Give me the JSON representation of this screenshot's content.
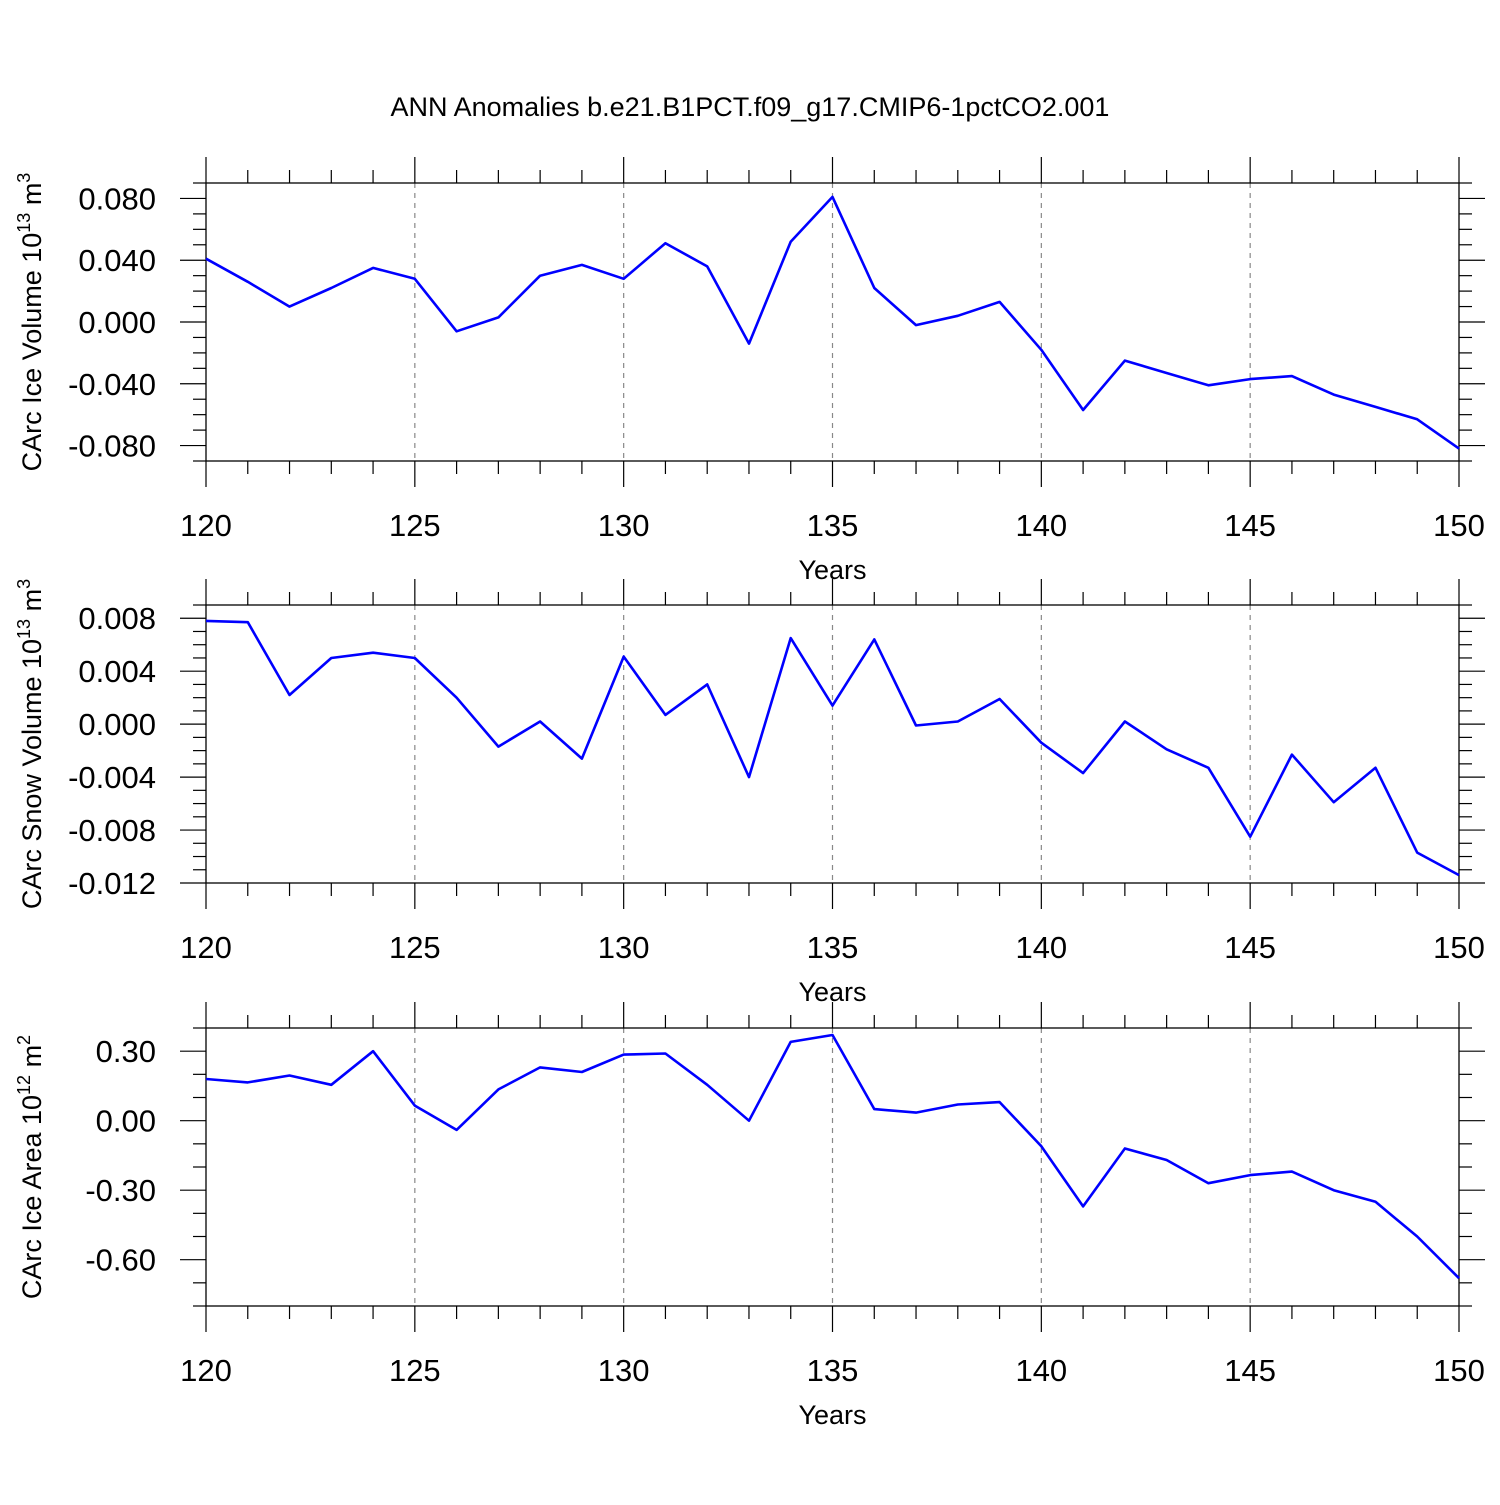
{
  "figure": {
    "title": "ANN Anomalies b.e21.B1PCT.f09_g17.CMIP6-1pctCO2.001",
    "line_color": "#0000ff",
    "grid_color": "#888888"
  },
  "chart_data": [
    {
      "type": "line",
      "title": "",
      "xlabel": "Years",
      "ylabel_main": "CArc Ice Volume 10",
      "ylabel_exp": "13",
      "ylabel_unit": "m",
      "ylabel_unit_exp": "3",
      "xlim": [
        120,
        150
      ],
      "ylim": [
        -0.09,
        0.09
      ],
      "xticks": [
        120,
        125,
        130,
        135,
        140,
        145,
        150
      ],
      "xtick_labels": [
        "120",
        "125",
        "130",
        "135",
        "140",
        "145",
        "150"
      ],
      "yticks": [
        0.08,
        0.04,
        0.0,
        -0.04,
        -0.08
      ],
      "ytick_labels": [
        "0.080",
        "0.040",
        "0.000",
        "-0.040",
        "-0.080"
      ],
      "yminor_step": 0.01,
      "x": [
        120,
        121,
        122,
        123,
        124,
        125,
        126,
        127,
        128,
        129,
        130,
        131,
        132,
        133,
        134,
        135,
        136,
        137,
        138,
        139,
        140,
        141,
        142,
        143,
        144,
        145,
        146,
        147,
        148,
        149,
        150
      ],
      "series": [
        {
          "name": "CArc Ice Volume",
          "values": [
            0.041,
            0.026,
            0.01,
            0.022,
            0.035,
            0.028,
            -0.006,
            0.003,
            0.03,
            0.037,
            0.028,
            0.051,
            0.036,
            -0.014,
            0.052,
            0.081,
            0.022,
            -0.002,
            0.004,
            0.013,
            -0.018,
            -0.057,
            -0.025,
            -0.033,
            -0.041,
            -0.037,
            -0.035,
            -0.047,
            -0.055,
            -0.063,
            -0.082
          ]
        }
      ]
    },
    {
      "type": "line",
      "title": "",
      "xlabel": "Years",
      "ylabel_main": "CArc Snow Volume 10",
      "ylabel_exp": "13",
      "ylabel_unit": "m",
      "ylabel_unit_exp": "3",
      "xlim": [
        120,
        150
      ],
      "ylim": [
        -0.012,
        0.009
      ],
      "xticks": [
        120,
        125,
        130,
        135,
        140,
        145,
        150
      ],
      "xtick_labels": [
        "120",
        "125",
        "130",
        "135",
        "140",
        "145",
        "150"
      ],
      "yticks": [
        0.008,
        0.004,
        0.0,
        -0.004,
        -0.008,
        -0.012
      ],
      "ytick_labels": [
        "0.008",
        "0.004",
        "0.000",
        "-0.004",
        "-0.008",
        "-0.012"
      ],
      "yminor_step": 0.001,
      "x": [
        120,
        121,
        122,
        123,
        124,
        125,
        126,
        127,
        128,
        129,
        130,
        131,
        132,
        133,
        134,
        135,
        136,
        137,
        138,
        139,
        140,
        141,
        142,
        143,
        144,
        145,
        146,
        147,
        148,
        149,
        150
      ],
      "series": [
        {
          "name": "CArc Snow Volume",
          "values": [
            0.0078,
            0.0077,
            0.0022,
            0.005,
            0.0054,
            0.005,
            0.002,
            -0.0017,
            0.0002,
            -0.0026,
            0.0051,
            0.0007,
            0.003,
            -0.004,
            0.0065,
            0.0014,
            0.0064,
            -0.0001,
            0.0002,
            0.0019,
            -0.0014,
            -0.0037,
            0.0002,
            -0.0019,
            -0.0033,
            -0.0085,
            -0.0023,
            -0.0059,
            -0.0033,
            -0.0097,
            -0.0114
          ]
        }
      ]
    },
    {
      "type": "line",
      "title": "",
      "xlabel": "Years",
      "ylabel_main": "CArc Ice Area 10",
      "ylabel_exp": "12",
      "ylabel_unit": "m",
      "ylabel_unit_exp": "2",
      "xlim": [
        120,
        150
      ],
      "ylim": [
        -0.8,
        0.4
      ],
      "xticks": [
        120,
        125,
        130,
        135,
        140,
        145,
        150
      ],
      "xtick_labels": [
        "120",
        "125",
        "130",
        "135",
        "140",
        "145",
        "150"
      ],
      "yticks": [
        0.3,
        0.0,
        -0.3,
        -0.6
      ],
      "ytick_labels": [
        "0.30",
        "0.00",
        "-0.30",
        "-0.60"
      ],
      "yminor_step": 0.1,
      "x": [
        120,
        121,
        122,
        123,
        124,
        125,
        126,
        127,
        128,
        129,
        130,
        131,
        132,
        133,
        134,
        135,
        136,
        137,
        138,
        139,
        140,
        141,
        142,
        143,
        144,
        145,
        146,
        147,
        148,
        149,
        150
      ],
      "series": [
        {
          "name": "CArc Ice Area",
          "values": [
            0.18,
            0.165,
            0.195,
            0.155,
            0.3,
            0.065,
            -0.04,
            0.135,
            0.23,
            0.21,
            0.285,
            0.29,
            0.155,
            0.0,
            0.34,
            0.37,
            0.05,
            0.035,
            0.07,
            0.08,
            -0.11,
            -0.37,
            -0.12,
            -0.17,
            -0.27,
            -0.235,
            -0.22,
            -0.3,
            -0.35,
            -0.5,
            -0.68
          ]
        }
      ]
    }
  ]
}
